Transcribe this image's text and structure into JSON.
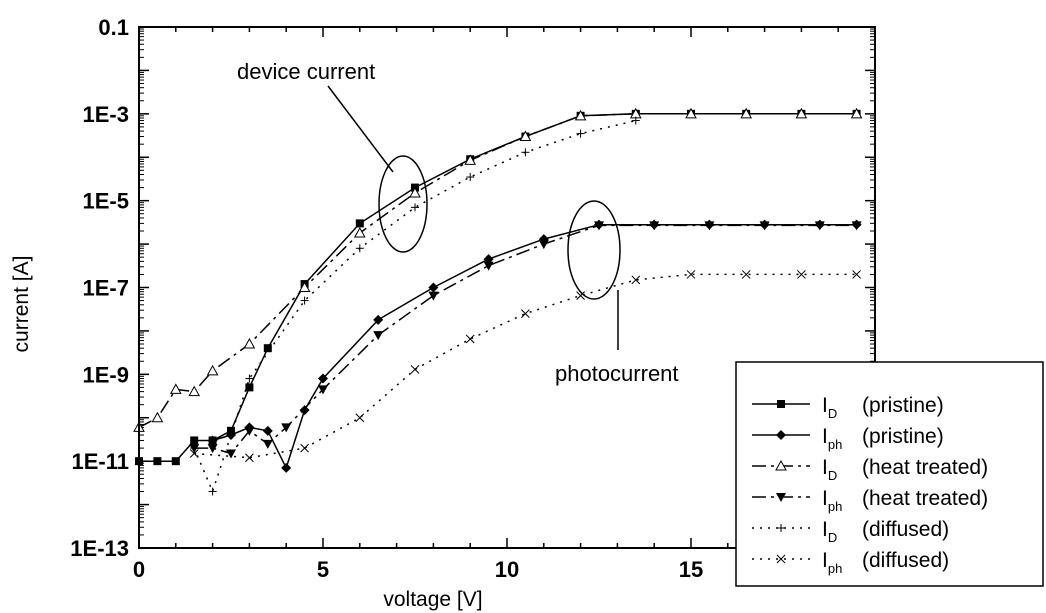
{
  "chart_data": {
    "type": "line",
    "xlabel": "voltage [V]",
    "ylabel": "current [A]",
    "xlim": [
      0,
      20
    ],
    "ylim": [
      1e-13,
      0.1
    ],
    "y_scale": "log",
    "x_ticks": [
      0,
      5,
      10,
      15
    ],
    "x_tick_labels": [
      "0",
      "5",
      "10",
      "15"
    ],
    "y_ticks": [
      1e-13,
      1e-11,
      1e-09,
      1e-07,
      1e-05,
      0.001,
      0.1
    ],
    "y_tick_labels": [
      "1E-13",
      "1E-11",
      "1E-9",
      "1E-7",
      "1E-5",
      "1E-3",
      "0.1"
    ],
    "legend_position": "bottom-right",
    "annotations": [
      "device current",
      "photocurrent"
    ],
    "series": [
      {
        "name": "I_D (pristine)",
        "label_main": "I",
        "label_sub": "D",
        "label_rest": "(pristine)",
        "line_style": "solid",
        "marker": "filled-square",
        "x": [
          0,
          0.5,
          1.0,
          1.5,
          2.0,
          2.5,
          3.0,
          3.5,
          4.5,
          6.0,
          7.5,
          9.0,
          10.5,
          12.0,
          13.5,
          15.0,
          16.5,
          18.0,
          19.5
        ],
        "y": [
          1e-11,
          1e-11,
          1e-11,
          3e-11,
          3e-11,
          5e-11,
          5e-10,
          4e-09,
          1.2e-07,
          3e-06,
          2e-05,
          9e-05,
          0.0003,
          0.0009,
          0.001,
          0.001,
          0.001,
          0.001,
          0.001
        ]
      },
      {
        "name": "I_ph (pristine)",
        "label_main": "I",
        "label_sub": "ph",
        "label_rest": "(pristine)",
        "line_style": "solid",
        "marker": "filled-diamond",
        "x": [
          2.0,
          2.5,
          3.0,
          3.5,
          4.0,
          4.5,
          5.0,
          6.5,
          8.0,
          9.5,
          11.0,
          12.5,
          14.0,
          15.5,
          17.0,
          18.5,
          19.5
        ],
        "y": [
          3e-11,
          4e-11,
          6e-11,
          5e-11,
          7e-12,
          1.5e-10,
          8e-10,
          1.8e-08,
          1e-07,
          4.5e-07,
          1.3e-06,
          2.8e-06,
          2.8e-06,
          2.8e-06,
          2.8e-06,
          2.8e-06,
          2.8e-06
        ]
      },
      {
        "name": "I_D (heat treated)",
        "label_main": "I",
        "label_sub": "D",
        "label_rest": "(heat treated)",
        "line_style": "dash-dot",
        "marker": "open-triangle",
        "x": [
          0,
          0.5,
          1.0,
          1.5,
          2.0,
          3.0,
          4.5,
          6.0,
          7.5,
          9.0,
          10.5,
          12.0,
          13.5,
          15.0,
          16.5,
          18.0,
          19.5
        ],
        "y": [
          6e-11,
          1e-10,
          4.5e-10,
          4e-10,
          1.2e-09,
          5e-09,
          1e-07,
          1.8e-06,
          1.5e-05,
          8.5e-05,
          0.0003,
          0.0009,
          0.001,
          0.001,
          0.001,
          0.001,
          0.001
        ]
      },
      {
        "name": "I_ph (heat treated)",
        "label_main": "I",
        "label_sub": "ph",
        "label_rest": "(heat treated)",
        "line_style": "dash-dot",
        "marker": "filled-triangle-down",
        "x": [
          1.5,
          2.0,
          2.5,
          3.0,
          3.5,
          4.0,
          5.0,
          6.5,
          8.0,
          9.5,
          11.0,
          12.5,
          14.0,
          15.5,
          17.0,
          18.5,
          19.5
        ],
        "y": [
          2e-11,
          2e-11,
          1.5e-11,
          5e-11,
          2.5e-11,
          6e-11,
          4.5e-10,
          8e-09,
          6.5e-08,
          3.2e-07,
          1e-06,
          2.7e-06,
          2.7e-06,
          2.7e-06,
          2.7e-06,
          2.7e-06,
          2.7e-06
        ]
      },
      {
        "name": "I_D (diffused)",
        "label_main": "I",
        "label_sub": "D",
        "label_rest": "(diffused)",
        "line_style": "dotted",
        "marker": "plus",
        "x": [
          1.5,
          2.0,
          3.0,
          4.5,
          6.0,
          7.5,
          9.0,
          10.5,
          12.0,
          13.5
        ],
        "y": [
          2e-11,
          2e-12,
          8e-10,
          5e-08,
          8e-07,
          7e-06,
          3.5e-05,
          0.00013,
          0.00035,
          0.0007
        ]
      },
      {
        "name": "I_ph (diffused)",
        "label_main": "I",
        "label_sub": "ph",
        "label_rest": "(diffused)",
        "line_style": "dotted",
        "marker": "x",
        "x": [
          1.5,
          3.0,
          4.5,
          6.0,
          7.5,
          9.0,
          10.5,
          12.0,
          13.5,
          15.0,
          16.5,
          18.0,
          19.5
        ],
        "y": [
          1.5e-11,
          1.2e-11,
          2e-11,
          1e-10,
          1.3e-09,
          6.5e-09,
          2.5e-08,
          6.5e-08,
          1.5e-07,
          2e-07,
          2e-07,
          2e-07,
          2e-07
        ]
      }
    ]
  }
}
